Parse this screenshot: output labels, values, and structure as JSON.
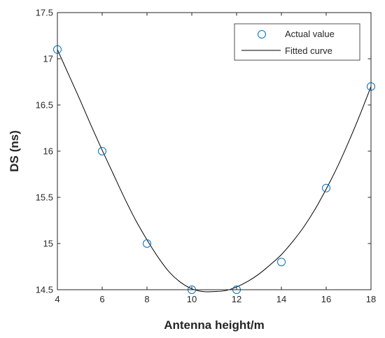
{
  "chart_data": {
    "type": "scatter",
    "title": "",
    "xlabel": "Antenna height/m",
    "ylabel": "DS (ns)",
    "xlim": [
      4,
      18
    ],
    "ylim": [
      14.5,
      17.5
    ],
    "xticks": [
      "4",
      "6",
      "8",
      "10",
      "12",
      "14",
      "16",
      "18"
    ],
    "yticks": [
      "14.5",
      "15",
      "15.5",
      "16",
      "16.5",
      "17",
      "17.5"
    ],
    "grid": false,
    "legend_position": "top-right",
    "series": [
      {
        "name": "Actual value",
        "kind": "markers",
        "marker": "circle",
        "color": "#0072BD",
        "x": [
          4,
          6,
          8,
          10,
          12,
          14,
          16,
          18
        ],
        "y": [
          17.1,
          16.0,
          15.0,
          14.5,
          14.5,
          14.8,
          15.6,
          16.7
        ]
      },
      {
        "name": "Fitted curve",
        "kind": "line",
        "color": "#000000",
        "x": [
          4,
          4.5,
          5,
          5.5,
          6,
          6.5,
          7,
          7.5,
          8,
          8.5,
          9,
          9.5,
          10,
          10.5,
          11,
          11.5,
          12,
          12.5,
          13,
          13.5,
          14,
          14.5,
          15,
          15.5,
          16,
          16.5,
          17,
          17.5,
          18
        ],
        "y": [
          17.1,
          16.83,
          16.56,
          16.28,
          16.01,
          15.75,
          15.49,
          15.25,
          15.04,
          14.85,
          14.69,
          14.58,
          14.51,
          14.48,
          14.48,
          14.49,
          14.53,
          14.59,
          14.67,
          14.77,
          14.88,
          15.02,
          15.18,
          15.37,
          15.59,
          15.83,
          16.1,
          16.39,
          16.7
        ]
      }
    ]
  }
}
